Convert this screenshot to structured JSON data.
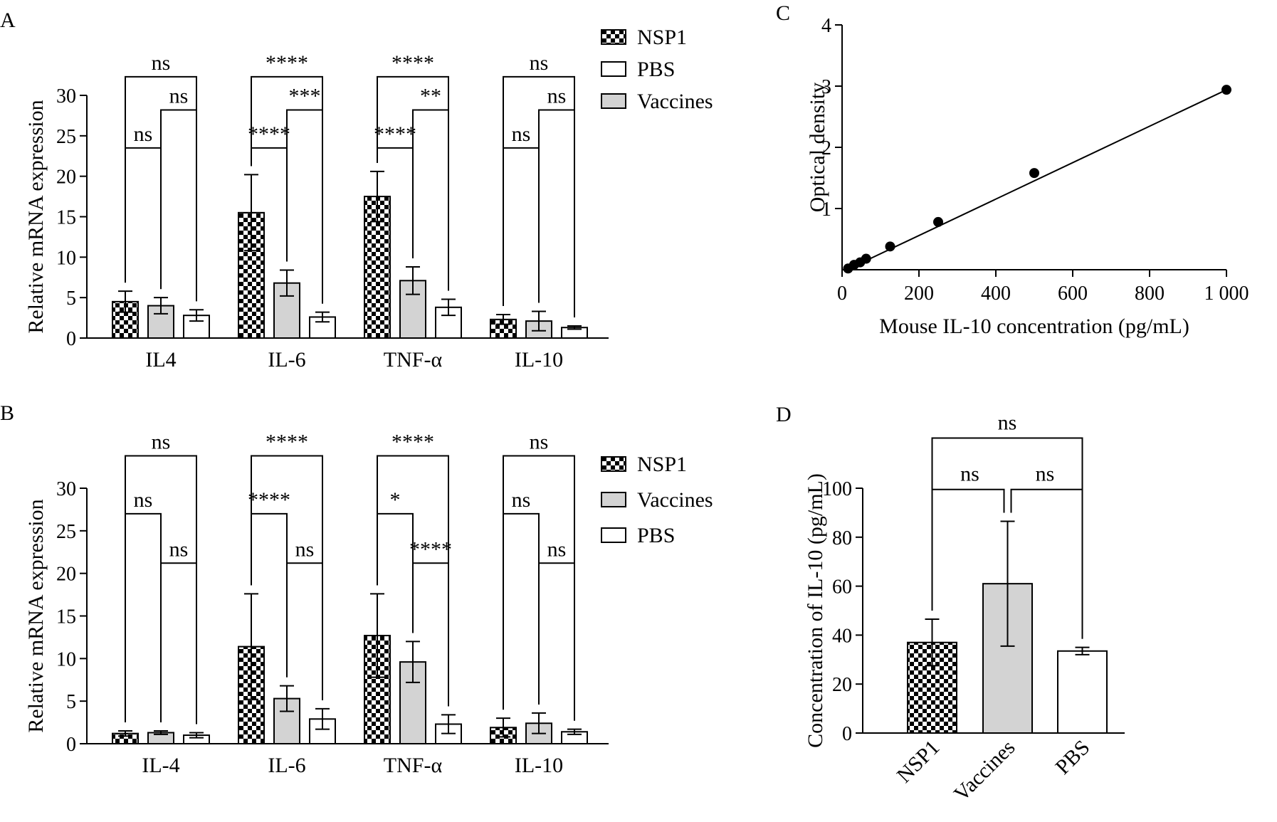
{
  "colors": {
    "nsp1": "checker-black-white",
    "vaccines": "#d3d3d3",
    "pbs": "#ffffff",
    "line": "#000000"
  },
  "chart_data": [
    {
      "panel": "A",
      "type": "bar",
      "ylabel": "Relative mRNA expression",
      "ylim": [
        0,
        30
      ],
      "yticks": [
        "0",
        "5",
        "10",
        "15",
        "20",
        "25",
        "30"
      ],
      "categories": [
        "IL4",
        "IL-6",
        "TNF-α",
        "IL-10"
      ],
      "series": [
        {
          "name": "NSP1",
          "style": "checker",
          "values": [
            4.5,
            15.5,
            17.5,
            2.3
          ],
          "errors": [
            1.3,
            4.7,
            3.1,
            0.6
          ]
        },
        {
          "name": "Vaccines",
          "style": "gray",
          "values": [
            4.0,
            6.8,
            7.1,
            2.1
          ],
          "errors": [
            1.0,
            1.6,
            1.7,
            1.2
          ]
        },
        {
          "name": "PBS",
          "style": "white",
          "values": [
            2.8,
            2.6,
            3.8,
            1.3
          ],
          "errors": [
            0.7,
            0.6,
            1.0,
            0.2
          ]
        }
      ],
      "legend": [
        {
          "name": "NSP1",
          "style": "checker"
        },
        {
          "name": "PBS",
          "style": "white"
        },
        {
          "name": "Vaccines",
          "style": "gray"
        }
      ],
      "significance": [
        {
          "group": 0,
          "from": 0,
          "to": 1,
          "label": "ns"
        },
        {
          "group": 0,
          "from": 1,
          "to": 2,
          "label": "ns"
        },
        {
          "group": 0,
          "from": 0,
          "to": 2,
          "label": "ns"
        },
        {
          "group": 1,
          "from": 0,
          "to": 1,
          "label": "****"
        },
        {
          "group": 1,
          "from": 1,
          "to": 2,
          "label": "***"
        },
        {
          "group": 1,
          "from": 0,
          "to": 2,
          "label": "****"
        },
        {
          "group": 2,
          "from": 0,
          "to": 1,
          "label": "****"
        },
        {
          "group": 2,
          "from": 1,
          "to": 2,
          "label": "**"
        },
        {
          "group": 2,
          "from": 0,
          "to": 2,
          "label": "****"
        },
        {
          "group": 3,
          "from": 0,
          "to": 1,
          "label": "ns"
        },
        {
          "group": 3,
          "from": 1,
          "to": 2,
          "label": "ns"
        },
        {
          "group": 3,
          "from": 0,
          "to": 2,
          "label": "ns"
        }
      ]
    },
    {
      "panel": "B",
      "type": "bar",
      "ylabel": "Relative mRNA expression",
      "ylim": [
        0,
        30
      ],
      "yticks": [
        "0",
        "5",
        "10",
        "15",
        "20",
        "25",
        "30"
      ],
      "categories": [
        "IL-4",
        "IL-6",
        "TNF-α",
        "IL-10"
      ],
      "series": [
        {
          "name": "NSP1",
          "style": "checker",
          "values": [
            1.2,
            11.4,
            12.7,
            1.9
          ],
          "errors": [
            0.3,
            6.2,
            4.9,
            1.1
          ]
        },
        {
          "name": "Vaccines",
          "style": "gray",
          "values": [
            1.3,
            5.3,
            9.6,
            2.4
          ],
          "errors": [
            0.2,
            1.5,
            2.4,
            1.2
          ]
        },
        {
          "name": "PBS",
          "style": "white",
          "values": [
            1.0,
            2.9,
            2.3,
            1.4
          ],
          "errors": [
            0.3,
            1.2,
            1.1,
            0.3
          ]
        }
      ],
      "legend": [
        {
          "name": "NSP1",
          "style": "checker"
        },
        {
          "name": "Vaccines",
          "style": "gray"
        },
        {
          "name": "PBS",
          "style": "white"
        }
      ],
      "significance": [
        {
          "group": 0,
          "from": 0,
          "to": 1,
          "label": "ns"
        },
        {
          "group": 0,
          "from": 1,
          "to": 2,
          "label": "ns"
        },
        {
          "group": 0,
          "from": 0,
          "to": 2,
          "label": "ns"
        },
        {
          "group": 1,
          "from": 0,
          "to": 1,
          "label": "****"
        },
        {
          "group": 1,
          "from": 1,
          "to": 2,
          "label": "ns"
        },
        {
          "group": 1,
          "from": 0,
          "to": 2,
          "label": "****"
        },
        {
          "group": 2,
          "from": 0,
          "to": 1,
          "label": "*"
        },
        {
          "group": 2,
          "from": 1,
          "to": 2,
          "label": "****"
        },
        {
          "group": 2,
          "from": 0,
          "to": 2,
          "label": "****"
        },
        {
          "group": 3,
          "from": 0,
          "to": 1,
          "label": "ns"
        },
        {
          "group": 3,
          "from": 1,
          "to": 2,
          "label": "ns"
        },
        {
          "group": 3,
          "from": 0,
          "to": 2,
          "label": "ns"
        }
      ]
    },
    {
      "panel": "C",
      "type": "scatter",
      "xlabel": "Mouse IL-10 concentration (pg/mL)",
      "ylabel": "Optical density",
      "xlim": [
        0,
        1000
      ],
      "ylim": [
        0,
        4
      ],
      "xticks": [
        "0",
        "200",
        "400",
        "600",
        "800",
        "1 000"
      ],
      "yticks": [
        "1",
        "2",
        "3",
        "4"
      ],
      "points": [
        {
          "x": 15.6,
          "y": 0.02
        },
        {
          "x": 31.25,
          "y": 0.08
        },
        {
          "x": 46.9,
          "y": 0.12
        },
        {
          "x": 62.5,
          "y": 0.18
        },
        {
          "x": 125,
          "y": 0.38
        },
        {
          "x": 250,
          "y": 0.78
        },
        {
          "x": 500,
          "y": 1.58
        },
        {
          "x": 1000,
          "y": 2.94
        }
      ],
      "fit_line": [
        {
          "x": 15.6,
          "y": 0.01
        },
        {
          "x": 1000,
          "y": 2.94
        }
      ]
    },
    {
      "panel": "D",
      "type": "bar",
      "ylabel": "Concentration of IL-10 (pg/mL)",
      "ylim": [
        0,
        100
      ],
      "yticks": [
        "0",
        "20",
        "40",
        "60",
        "80",
        "100"
      ],
      "categories": [
        "NSP1",
        "Vaccines",
        "PBS"
      ],
      "values": [
        37,
        61,
        33.5
      ],
      "errors": [
        9.5,
        25.5,
        1.5
      ],
      "styles": [
        "checker",
        "gray",
        "white"
      ],
      "significance": [
        {
          "from": 0,
          "to": 1,
          "label": "ns"
        },
        {
          "from": 1,
          "to": 2,
          "label": "ns"
        },
        {
          "from": 0,
          "to": 2,
          "label": "ns"
        }
      ]
    }
  ]
}
